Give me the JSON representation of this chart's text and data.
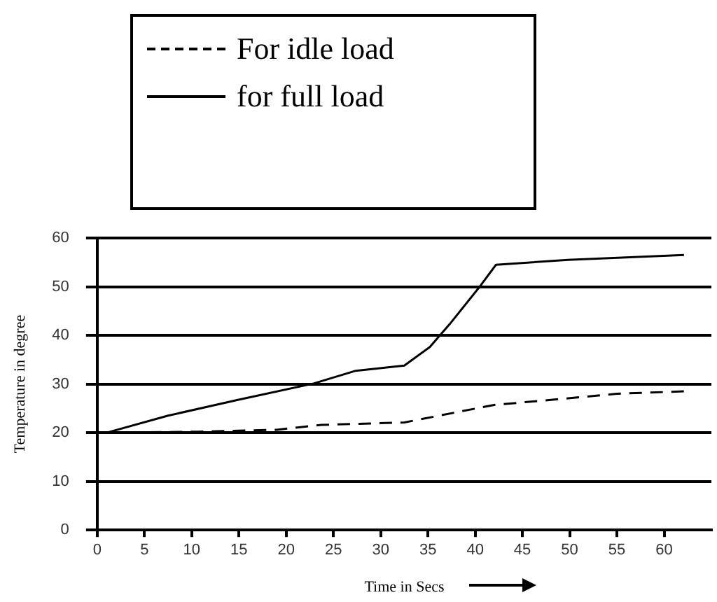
{
  "chart_data": {
    "type": "line",
    "xlabel": "Time in Secs",
    "ylabel": "Temperature in degree",
    "series": [
      {
        "name": "For idle load",
        "color": "#000000",
        "line_style": "dashed",
        "x": [
          1,
          10.6,
          19,
          23.7,
          32.5,
          42,
          47.2,
          55,
          62.1
        ],
        "values": [
          20,
          20.2,
          20.6,
          21.6,
          22.1,
          25.7,
          26.6,
          28,
          28.5
        ]
      },
      {
        "name": "for full load",
        "color": "#000000",
        "line_style": "solid",
        "x": [
          1,
          7.5,
          14.8,
          22.9,
          27.3,
          32.5,
          35.2,
          37.3,
          40.6,
          42.2,
          49.8,
          62.1
        ],
        "values": [
          20,
          23.5,
          26.7,
          30.1,
          32.7,
          33.8,
          37.6,
          42.3,
          50.3,
          54.5,
          55.5,
          56.5
        ]
      }
    ],
    "xlim": [
      0,
      65
    ],
    "xticks": [
      0,
      5,
      10,
      15,
      20,
      25,
      30,
      35,
      40,
      45,
      50,
      55,
      60
    ],
    "ylim": [
      0,
      60
    ],
    "yticks": [
      0,
      10,
      20,
      30,
      40,
      50,
      60
    ],
    "grid": "y",
    "legend": "top",
    "marker": "none"
  }
}
